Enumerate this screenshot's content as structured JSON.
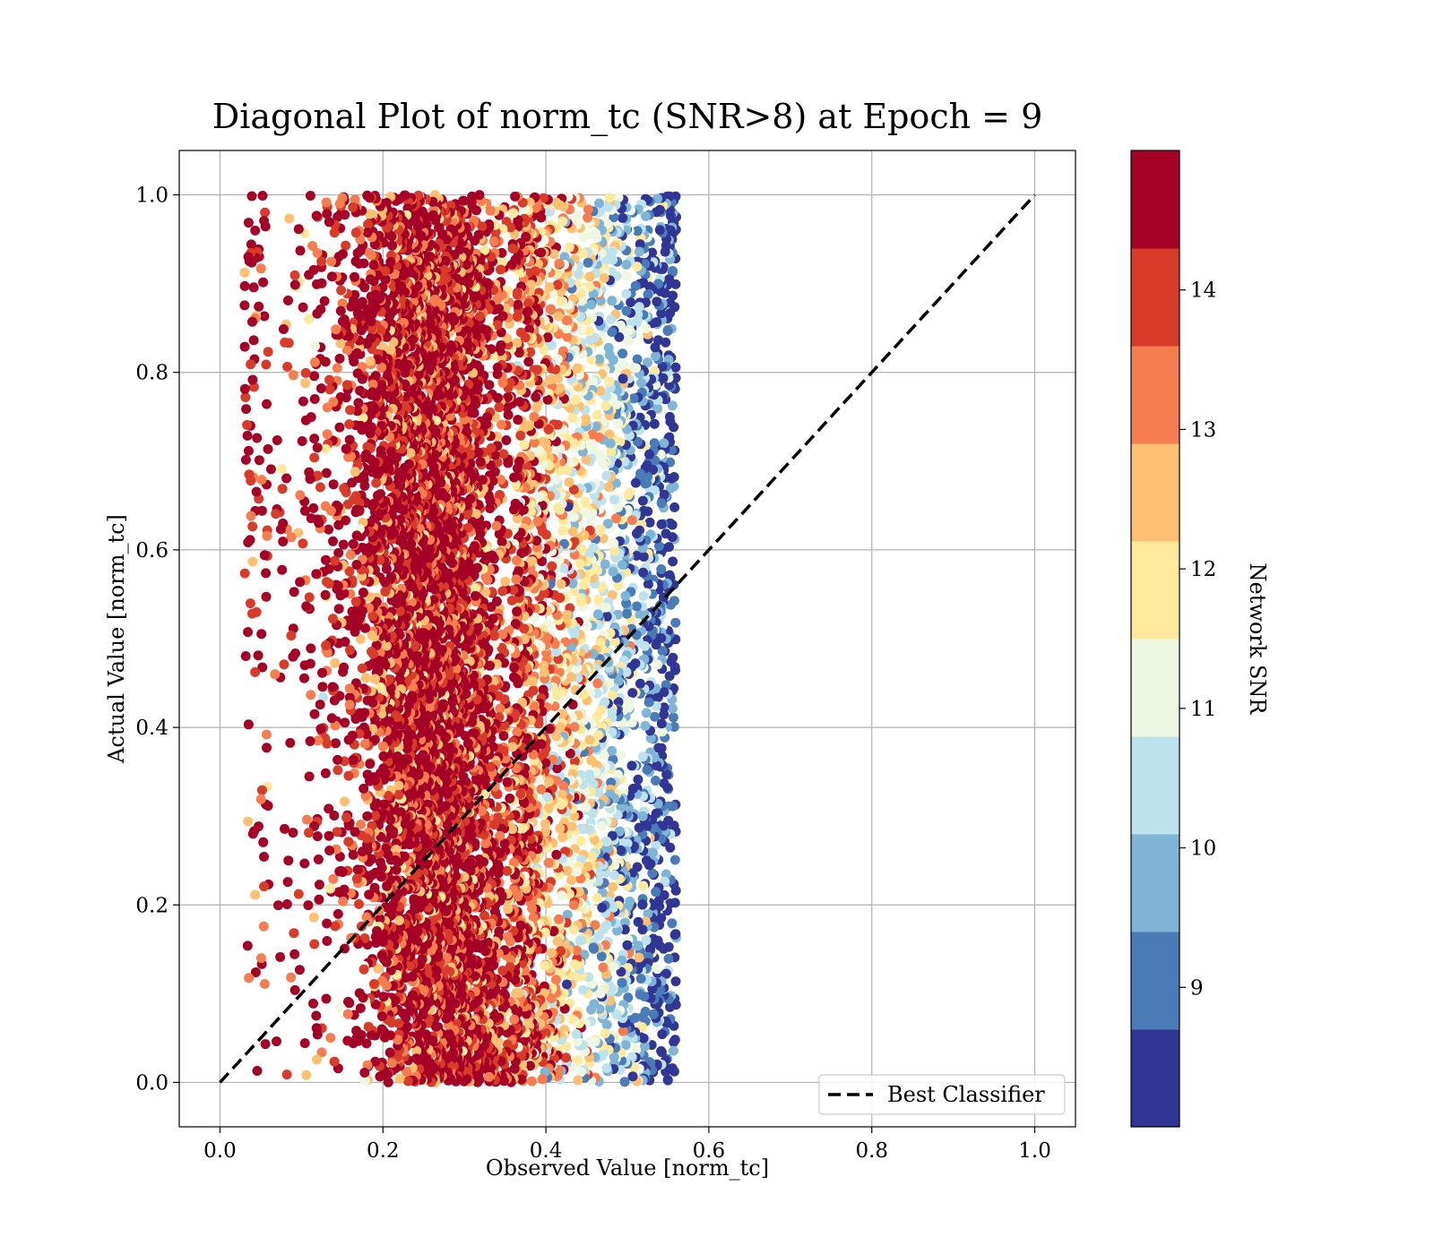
{
  "chart_data": {
    "type": "scatter",
    "title": "Diagonal Plot of norm_tc (SNR>8) at Epoch = 9",
    "xlabel": "Observed Value [norm_tc]",
    "ylabel": "Actual Value [norm_tc]",
    "xlim": [
      -0.05,
      1.05
    ],
    "ylim": [
      -0.05,
      1.05
    ],
    "xticks": [
      "0.0",
      "0.2",
      "0.4",
      "0.6",
      "0.8",
      "1.0"
    ],
    "yticks": [
      "0.0",
      "0.2",
      "0.4",
      "0.6",
      "0.8",
      "1.0"
    ],
    "grid": true,
    "colorbar": {
      "label": "Network SNR",
      "range": [
        8,
        15
      ],
      "ticks": [
        "9",
        "10",
        "11",
        "12",
        "13",
        "14"
      ],
      "colormap": "RdYlBu_r",
      "bins": 10,
      "colors": [
        "#313695",
        "#4a7bb7",
        "#80b4d6",
        "#bde1ed",
        "#eef7e1",
        "#fee99d",
        "#fdbf71",
        "#f57d4f",
        "#d93b2b",
        "#a50026"
      ]
    },
    "scatter_description": {
      "x_center_by_actual": [
        [
          0.0,
          0.3
        ],
        [
          0.2,
          0.28
        ],
        [
          0.4,
          0.27
        ],
        [
          0.6,
          0.26
        ],
        [
          0.8,
          0.26
        ],
        [
          1.0,
          0.26
        ]
      ],
      "x_max": 0.56,
      "color_trend": "high SNR (dark red) at low observed values, low SNR (blue) toward observed ≈ 0.55"
    },
    "reference_line": {
      "name": "Best Classifier",
      "style": "dashed",
      "color": "#000000",
      "x": [
        0.0,
        1.0
      ],
      "y": [
        0.0,
        1.0
      ]
    },
    "legend": {
      "position": "lower-right",
      "entries": [
        "Best Classifier"
      ]
    }
  }
}
